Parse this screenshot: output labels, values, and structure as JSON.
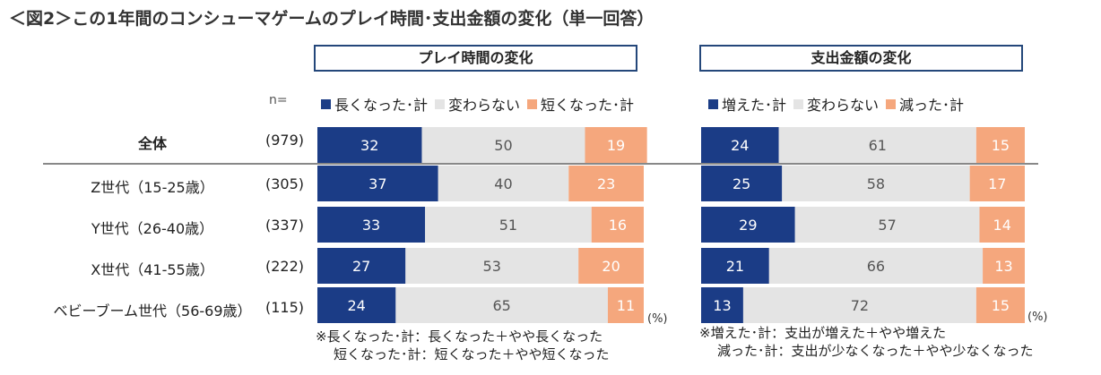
{
  "title": "＜図2＞この1年間のコンシューマゲームのプレイ時間･支出金額の変化（単一回答）",
  "n_label": "n=",
  "percent_unit": "(%)",
  "colors": {
    "dark": "#1b3c86",
    "light": "#e4e4e4",
    "orange": "#f5a77d"
  },
  "rows": [
    {
      "label": "全体",
      "n": "(979)"
    },
    {
      "label": "Z世代（15-25歳）",
      "n": "(305)"
    },
    {
      "label": "Y世代（26-40歳）",
      "n": "(337)"
    },
    {
      "label": "X世代（41-55歳）",
      "n": "(222)"
    },
    {
      "label": "ベビーブーム世代（56-69歳）",
      "n": "(115)"
    }
  ],
  "chart_data": [
    {
      "type": "bar",
      "stacked": true,
      "orientation": "horizontal",
      "title": "プレイ時間の変化",
      "categories": [
        "全体",
        "Z世代（15-25歳）",
        "Y世代（26-40歳）",
        "X世代（41-55歳）",
        "ベビーブーム世代（56-69歳）"
      ],
      "legend": [
        "長くなった･計",
        "変わらない",
        "短くなった･計"
      ],
      "series": [
        {
          "name": "長くなった･計",
          "values": [
            32,
            37,
            33,
            27,
            24
          ]
        },
        {
          "name": "変わらない",
          "values": [
            50,
            40,
            51,
            53,
            65
          ]
        },
        {
          "name": "短くなった･計",
          "values": [
            19,
            23,
            16,
            20,
            11
          ]
        }
      ],
      "xlim": [
        0,
        100
      ],
      "note": [
        "※長くなった･計：長くなった＋やや長くなった",
        "短くなった･計：短くなった＋やや短くなった"
      ]
    },
    {
      "type": "bar",
      "stacked": true,
      "orientation": "horizontal",
      "title": "支出金額の変化",
      "categories": [
        "全体",
        "Z世代（15-25歳）",
        "Y世代（26-40歳）",
        "X世代（41-55歳）",
        "ベビーブーム世代（56-69歳）"
      ],
      "legend": [
        "増えた･計",
        "変わらない",
        "減った･計"
      ],
      "series": [
        {
          "name": "増えた･計",
          "values": [
            24,
            25,
            29,
            21,
            13
          ]
        },
        {
          "name": "変わらない",
          "values": [
            61,
            58,
            57,
            66,
            72
          ]
        },
        {
          "name": "減った･計",
          "values": [
            15,
            17,
            14,
            13,
            15
          ]
        }
      ],
      "xlim": [
        0,
        100
      ],
      "note": [
        "※増えた･計：支出が増えた＋やや増えた",
        "減った･計：支出が少なくなった＋やや少なくなった"
      ]
    }
  ]
}
